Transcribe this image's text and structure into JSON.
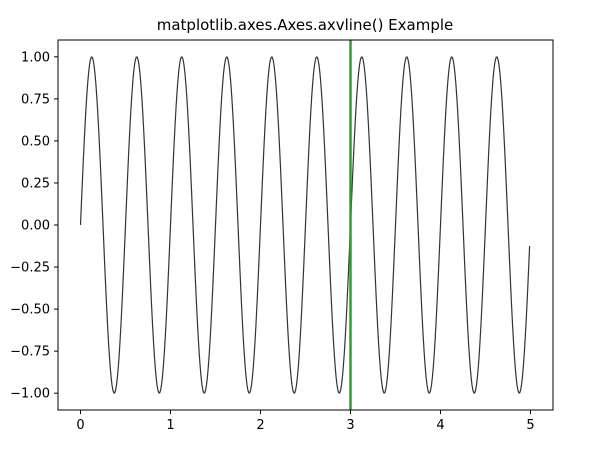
{
  "chart_data": {
    "type": "line",
    "title": "matplotlib.axes.Axes.axvline() Example",
    "xlabel": "",
    "ylabel": "",
    "xlim": [
      -0.25,
      5.25
    ],
    "ylim": [
      -1.1,
      1.1
    ],
    "x_ticks": [
      0,
      1,
      2,
      3,
      4,
      5
    ],
    "x_tick_labels": [
      "0",
      "1",
      "2",
      "3",
      "4",
      "5"
    ],
    "y_ticks": [
      1.0,
      0.75,
      0.5,
      0.25,
      0.0,
      -0.25,
      -0.5,
      -0.75,
      -1.0
    ],
    "y_tick_labels": [
      "1.00",
      "0.75",
      "0.50",
      "0.25",
      "0.00",
      "−0.25",
      "−0.50",
      "−0.75",
      "−1.00"
    ],
    "grid": false,
    "series": [
      {
        "function": "y = sin(4πx)",
        "x_start": 0,
        "x_end": 4.99,
        "x_step": 0.01,
        "color": "#333333"
      }
    ],
    "vlines": [
      {
        "x": 3,
        "color": "#2ca02c"
      }
    ]
  }
}
